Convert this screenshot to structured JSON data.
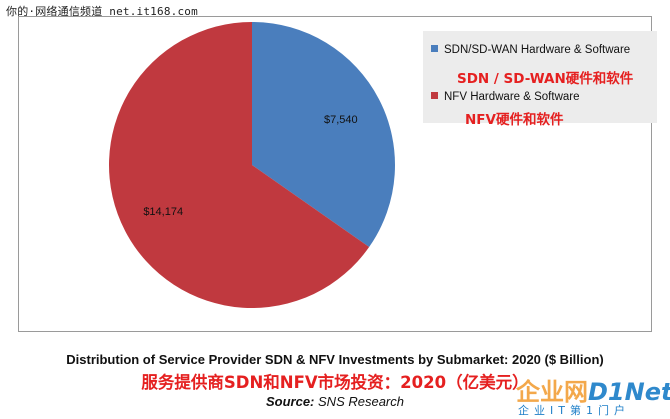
{
  "watermark": "你的·网络通信频道 net.it168.com",
  "chart_data": {
    "type": "pie",
    "title": "Distribution of Service Provider SDN & NFV Investments by Submarket: 2020 ($ Billion)",
    "title_cn": "服务提供商SDN和NFV市场投资：2020（亿美元）",
    "source_label": "Source:",
    "source_value": "SNS Research",
    "slices": [
      {
        "name": "SDN/SD-WAN Hardware & Software",
        "name_cn": "SDN / SD-WAN硬件和软件",
        "value": 7540,
        "label": "$7,540",
        "color": "#4a7ebd"
      },
      {
        "name": "NFV Hardware & Software",
        "name_cn": "NFV硬件和软件",
        "value": 14174,
        "label": "$14,174",
        "color": "#c0393f"
      }
    ],
    "start_angle": "top",
    "direction": "clockwise",
    "legend_position": "top-right"
  },
  "logo": {
    "main_part1": "企业网",
    "main_part2": "D1Net",
    "sub": "企业IT第1门户"
  }
}
